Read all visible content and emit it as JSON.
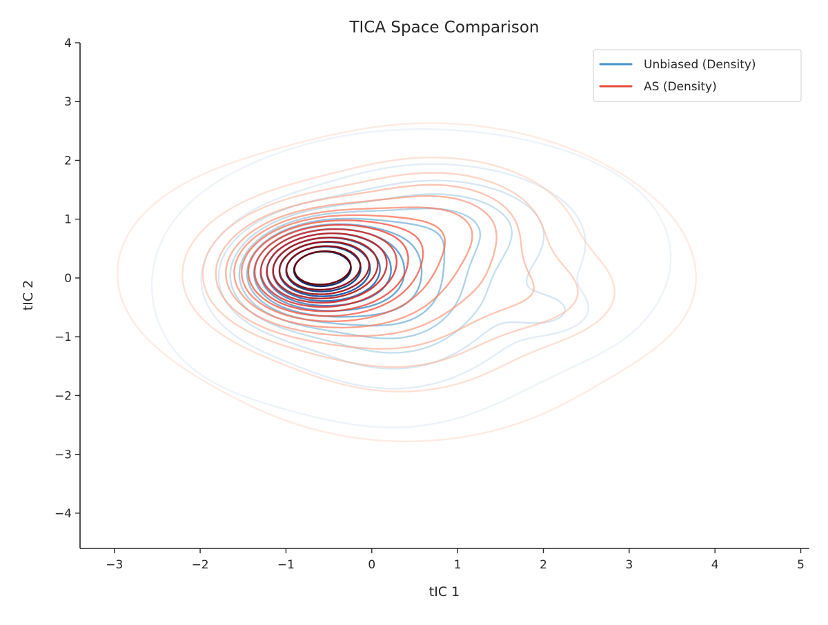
{
  "chart_data": {
    "type": "contour",
    "title": "TICA Space Comparison",
    "xlabel": "tIC 1",
    "ylabel": "tIC 2",
    "xlim": [
      -3.4,
      5.1
    ],
    "ylim": [
      -4.6,
      4.0
    ],
    "xticks": [
      -3,
      -2,
      -1,
      0,
      1,
      2,
      3,
      4,
      5
    ],
    "yticks": [
      -4,
      -3,
      -2,
      -1,
      0,
      1,
      2,
      3,
      4
    ],
    "xtick_labels": [
      "−3",
      "−2",
      "−1",
      "0",
      "1",
      "2",
      "3",
      "4",
      "5"
    ],
    "ytick_labels": [
      "−4",
      "−3",
      "−2",
      "−1",
      "0",
      "1",
      "2",
      "3",
      "4"
    ],
    "grid": false,
    "legend_position": "top-right",
    "series": [
      {
        "name": "Unbiased (Density)",
        "color": "#4292c6",
        "colormap": "Blues",
        "levels": 13,
        "center": [
          -0.68,
          0.18
        ],
        "secondary_mode": [
          2.05,
          -0.58
        ],
        "outer_extent": {
          "x": [
            -2.35,
            3.25
          ],
          "y": [
            -2.45,
            2.5
          ]
        }
      },
      {
        "name": "AS (Density)",
        "color": "#e34a33",
        "colormap": "Reds",
        "levels": 15,
        "center": [
          -0.68,
          0.18
        ],
        "outer_extent": {
          "x": [
            -2.65,
            3.55
          ],
          "y": [
            -2.85,
            2.7
          ]
        }
      }
    ]
  }
}
